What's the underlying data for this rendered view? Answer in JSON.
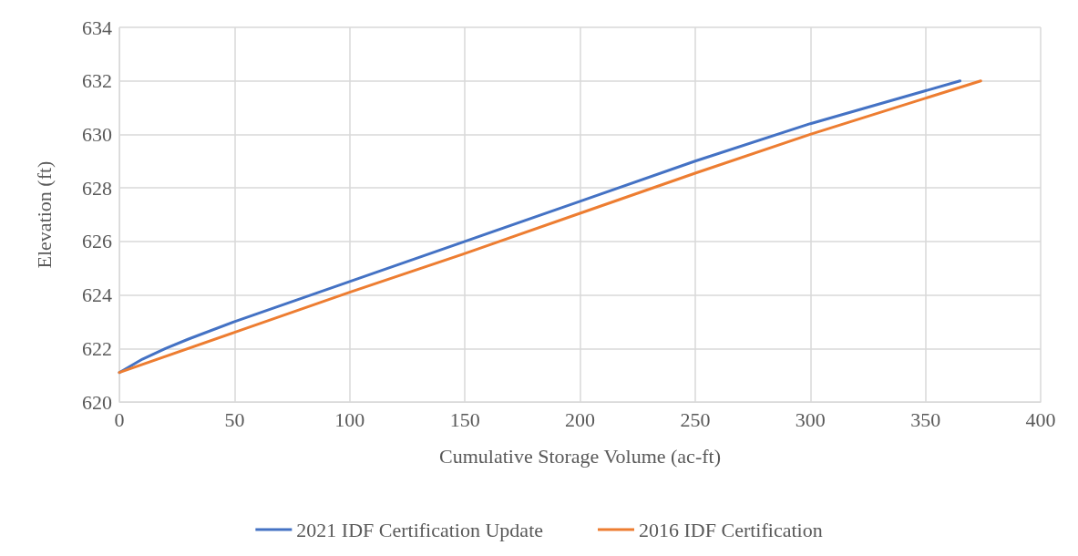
{
  "chart_data": {
    "type": "line",
    "xlabel": "Cumulative Storage Volume (ac-ft)",
    "ylabel": "Elevation (ft)",
    "xlim": [
      0,
      400
    ],
    "xticks": [
      0,
      50,
      100,
      150,
      200,
      250,
      300,
      350,
      400
    ],
    "ylim": [
      620,
      634
    ],
    "yticks": [
      620,
      622,
      624,
      626,
      628,
      630,
      632,
      634
    ],
    "grid": true,
    "legend": "bottom",
    "marker": "none",
    "line_style": "solid",
    "series": [
      {
        "name": "2021 IDF Certification Update",
        "color": "#4472c4",
        "x": [
          0,
          10,
          20,
          30,
          50,
          100,
          150,
          200,
          250,
          300,
          365
        ],
        "values": [
          621.1,
          621.6,
          622.0,
          622.35,
          623.0,
          624.5,
          626.0,
          627.5,
          629.0,
          630.4,
          632
        ]
      },
      {
        "name": "2016 IDF Certification",
        "color": "#ed7d31",
        "x": [
          0,
          50,
          100,
          150,
          200,
          250,
          300,
          374
        ],
        "values": [
          621.1,
          622.6,
          624.1,
          625.55,
          627.05,
          628.55,
          630.0,
          632
        ]
      }
    ]
  }
}
